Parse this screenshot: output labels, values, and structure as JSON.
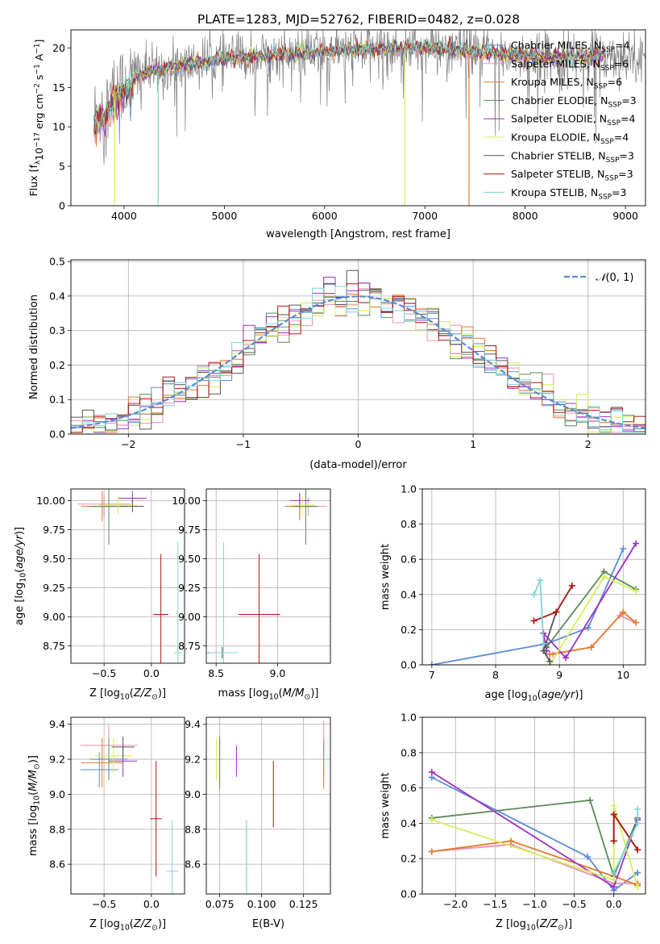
{
  "figure": {
    "title": "PLATE=1283, MJD=52762, FIBERID=0482, z=0.028"
  },
  "colors": {
    "chabrier_miles": "#5b8bd8",
    "salpeter_miles": "#ef8fb6",
    "kroupa_miles": "#e07b2a",
    "chabrier_elodie": "#5a8a5a",
    "salpeter_elodie": "#9b30c0",
    "kroupa_elodie": "#d6ef55",
    "chabrier_stelib": "#555555",
    "salpeter_stelib": "#b01414",
    "kroupa_stelib": "#7dd6d6",
    "normal": "#5b8bd8"
  },
  "legend_entries": [
    {
      "key": "chabrier_miles",
      "text": "Chabrier MILES, N",
      "sub": "SSP",
      "tail": "=4"
    },
    {
      "key": "salpeter_miles",
      "text": "Salpeter MILES, N",
      "sub": "SSP",
      "tail": "=6"
    },
    {
      "key": "kroupa_miles",
      "text": "Kroupa MILES, N",
      "sub": "SSP",
      "tail": "=6"
    },
    {
      "key": "chabrier_elodie",
      "text": "Chabrier ELODIE, N",
      "sub": "SSP",
      "tail": "=3"
    },
    {
      "key": "salpeter_elodie",
      "text": "Salpeter ELODIE, N",
      "sub": "SSP",
      "tail": "=4"
    },
    {
      "key": "kroupa_elodie",
      "text": "Kroupa ELODIE, N",
      "sub": "SSP",
      "tail": "=4"
    },
    {
      "key": "chabrier_stelib",
      "text": "Chabrier STELIB, N",
      "sub": "SSP",
      "tail": "=3"
    },
    {
      "key": "salpeter_stelib",
      "text": "Salpeter STELIB, N",
      "sub": "SSP",
      "tail": "=3"
    },
    {
      "key": "kroupa_stelib",
      "text": "Kroupa STELIB, N",
      "sub": "SSP",
      "tail": "=3"
    }
  ],
  "chart_data": [
    {
      "id": "spectrum",
      "type": "line",
      "title": "PLATE=1283, MJD=52762, FIBERID=0482, z=0.028",
      "xlabel": "wavelength [Angstrom, rest frame]",
      "ylabel": "Flux [f_λ 10^-17 erg cm^-2 s^-1 A^-1]",
      "xlim": [
        3470,
        9200
      ],
      "ylim": [
        0,
        22.3
      ],
      "xticks": [
        4000,
        5000,
        6000,
        7000,
        8000,
        9000
      ],
      "yticks": [
        0,
        5,
        10,
        15,
        20
      ],
      "grid": false,
      "legend": "upper-right",
      "continuum": [
        [
          3700,
          11.5
        ],
        [
          3800,
          12.5
        ],
        [
          3900,
          14.5
        ],
        [
          4000,
          15.8
        ],
        [
          4200,
          16.8
        ],
        [
          4400,
          17.3
        ],
        [
          4800,
          18.3
        ],
        [
          5200,
          18.9
        ],
        [
          5600,
          19.2
        ],
        [
          6000,
          19.5
        ],
        [
          6400,
          19.8
        ],
        [
          6800,
          20.1
        ],
        [
          7000,
          20.0
        ],
        [
          7400,
          19.6
        ],
        [
          7800,
          19.2
        ],
        [
          8200,
          18.9
        ],
        [
          8600,
          18.9
        ],
        [
          8800,
          19.2
        ]
      ],
      "data_noise_amplitude": 1.6,
      "data_x_range": [
        3700,
        9200
      ],
      "model_x_range": [
        3700,
        8800
      ],
      "drops": [
        {
          "x": 3905,
          "key": "kroupa_elodie"
        },
        {
          "x": 4340,
          "key": "kroupa_stelib"
        },
        {
          "x": 6800,
          "key": "kroupa_elodie"
        },
        {
          "x": 7440,
          "key": "kroupa_miles"
        }
      ]
    },
    {
      "id": "residual-hist",
      "type": "histogram",
      "xlabel": "(data-model)/error",
      "ylabel": "Normed distribution",
      "xlim": [
        -2.5,
        2.5
      ],
      "ylim": [
        0,
        0.505
      ],
      "xticks": [
        -2,
        -1,
        0,
        1,
        2
      ],
      "yticks": [
        0.0,
        0.1,
        0.2,
        0.3,
        0.4,
        0.5
      ],
      "bin_width": 0.1,
      "grid": true,
      "legend_label": "N(0,1)",
      "legend": "upper-right"
    },
    {
      "id": "age-vs-z",
      "type": "errorbar",
      "xlabel": "Z [log10(Z/Z⊙)]",
      "ylabel": "age  [log10(age/yr)]",
      "xlim": [
        -0.85,
        0.35
      ],
      "ylim": [
        8.6,
        10.1
      ],
      "xticks": [
        -0.5,
        0.0
      ],
      "xticklabels": [
        "−0.5",
        "0.0"
      ],
      "yticks": [
        8.75,
        9.0,
        9.25,
        9.5,
        9.75,
        10.0
      ],
      "grid": true,
      "points": [
        {
          "key": "chabrier_miles",
          "x": -0.5,
          "y": 9.95,
          "xerr": 0.2,
          "yerr": 0.08
        },
        {
          "key": "salpeter_miles",
          "x": -0.5,
          "y": 9.97,
          "xerr": 0.28,
          "yerr": 0.08
        },
        {
          "key": "kroupa_miles",
          "x": -0.52,
          "y": 9.95,
          "xerr": 0.22,
          "yerr": 0.13
        },
        {
          "key": "chabrier_elodie",
          "x": -0.45,
          "y": 9.95,
          "xerr": 0.2,
          "yerr": 0.33
        },
        {
          "key": "salpeter_elodie",
          "x": -0.2,
          "y": 10.02,
          "xerr": 0.15,
          "yerr": 0.06
        },
        {
          "key": "kroupa_elodie",
          "x": -0.35,
          "y": 9.96,
          "xerr": 0.2,
          "yerr": 0.08
        },
        {
          "key": "chabrier_stelib",
          "x": -0.2,
          "y": 9.95,
          "xerr": 0.12,
          "yerr": 0.05
        },
        {
          "key": "salpeter_stelib",
          "x": 0.1,
          "y": 9.02,
          "xerr": 0.08,
          "yerr": 0.52
        },
        {
          "key": "kroupa_stelib",
          "x": 0.28,
          "y": 8.69,
          "xerr": 0.04,
          "yerr": 0.95
        }
      ]
    },
    {
      "id": "age-vs-mass",
      "type": "errorbar",
      "xlabel": "mass [log10(M/M⊙)]",
      "ylabel": "",
      "xlim": [
        8.42,
        9.43
      ],
      "ylim": [
        8.6,
        10.1
      ],
      "xticks": [
        8.5,
        9.0
      ],
      "xticklabels": [
        "8.5",
        "9.0"
      ],
      "yticks": [
        8.75,
        9.0,
        9.25,
        9.5,
        9.75,
        10.0
      ],
      "grid": true,
      "points": [
        {
          "key": "chabrier_miles",
          "x": 9.18,
          "y": 9.95,
          "xerr": 0.12,
          "yerr": 0.1
        },
        {
          "key": "salpeter_miles",
          "x": 9.25,
          "y": 9.95,
          "xerr": 0.15,
          "yerr": 0.08
        },
        {
          "key": "kroupa_miles",
          "x": 9.18,
          "y": 9.95,
          "xerr": 0.12,
          "yerr": 0.12
        },
        {
          "key": "chabrier_elodie",
          "x": 9.23,
          "y": 9.95,
          "xerr": 0.1,
          "yerr": 0.33
        },
        {
          "key": "salpeter_elodie",
          "x": 9.18,
          "y": 10.0,
          "xerr": 0.08,
          "yerr": 0.06
        },
        {
          "key": "kroupa_elodie",
          "x": 9.2,
          "y": 9.96,
          "xerr": 0.1,
          "yerr": 0.08
        },
        {
          "key": "chabrier_stelib",
          "x": 8.55,
          "y": 8.69,
          "xerr": 0.12,
          "yerr": 0.05
        },
        {
          "key": "salpeter_stelib",
          "x": 8.85,
          "y": 9.02,
          "xerr": 0.17,
          "yerr": 0.52
        },
        {
          "key": "kroupa_stelib",
          "x": 8.56,
          "y": 8.69,
          "xerr": 0.12,
          "yerr": 0.95
        }
      ]
    },
    {
      "id": "weight-vs-age",
      "type": "line",
      "xlabel": "age  [log10(age/yr)]",
      "ylabel": "mass weight",
      "xlim": [
        6.85,
        10.35
      ],
      "ylim": [
        0,
        1.0
      ],
      "xticks": [
        7,
        8,
        9,
        10
      ],
      "yticks": [
        0.0,
        0.2,
        0.4,
        0.6,
        0.8,
        1.0
      ],
      "grid": true,
      "series": [
        {
          "key": "chabrier_miles",
          "points": [
            [
              7.0,
              0.0
            ],
            [
              8.8,
              0.12
            ],
            [
              9.45,
              0.21
            ],
            [
              10.0,
              0.66
            ]
          ]
        },
        {
          "key": "salpeter_miles",
          "points": [
            [
              8.9,
              0.06
            ],
            [
              9.5,
              0.1
            ],
            [
              9.95,
              0.28
            ],
            [
              10.2,
              0.24
            ]
          ]
        },
        {
          "key": "kroupa_miles",
          "points": [
            [
              8.85,
              0.06
            ],
            [
              9.5,
              0.1
            ],
            [
              10.0,
              0.3
            ],
            [
              10.2,
              0.24
            ]
          ]
        },
        {
          "key": "chabrier_elodie",
          "points": [
            [
              8.8,
              0.1
            ],
            [
              9.7,
              0.53
            ],
            [
              10.2,
              0.43
            ]
          ]
        },
        {
          "key": "salpeter_elodie",
          "points": [
            [
              8.8,
              0.08
            ],
            [
              8.75,
              0.18
            ],
            [
              9.1,
              0.04
            ],
            [
              10.2,
              0.69
            ]
          ]
        },
        {
          "key": "kroupa_elodie",
          "points": [
            [
              8.85,
              0.0
            ],
            [
              9.7,
              0.5
            ],
            [
              10.2,
              0.42
            ]
          ]
        },
        {
          "key": "chabrier_stelib",
          "points": [
            [
              8.85,
              0.02
            ],
            [
              8.75,
              0.08
            ],
            [
              8.95,
              0.3
            ]
          ]
        },
        {
          "key": "salpeter_stelib",
          "points": [
            [
              8.6,
              0.25
            ],
            [
              8.95,
              0.3
            ],
            [
              9.2,
              0.45
            ]
          ]
        },
        {
          "key": "kroupa_stelib",
          "points": [
            [
              8.6,
              0.4
            ],
            [
              8.7,
              0.48
            ],
            [
              8.75,
              0.12
            ]
          ]
        }
      ]
    },
    {
      "id": "mass-vs-z",
      "type": "errorbar",
      "xlabel": "Z [log10(Z/Z⊙)]",
      "ylabel": "mass [log10(M/M⊙)]",
      "xlim": [
        -0.85,
        0.35
      ],
      "ylim": [
        8.43,
        9.44
      ],
      "xticks": [
        -0.5,
        0.0
      ],
      "xticklabels": [
        "−0.5",
        "0.0"
      ],
      "yticks": [
        8.6,
        8.8,
        9.0,
        9.2,
        9.4
      ],
      "grid": true,
      "points": [
        {
          "key": "chabrier_miles",
          "x": -0.55,
          "y": 9.14,
          "xerr": 0.2,
          "yerr": 0.1
        },
        {
          "key": "salpeter_miles",
          "x": -0.45,
          "y": 9.28,
          "xerr": 0.3,
          "yerr": 0.12
        },
        {
          "key": "kroupa_miles",
          "x": -0.52,
          "y": 9.18,
          "xerr": 0.22,
          "yerr": 0.14
        },
        {
          "key": "chabrier_elodie",
          "x": -0.45,
          "y": 9.2,
          "xerr": 0.2,
          "yerr": 0.12
        },
        {
          "key": "salpeter_elodie",
          "x": -0.3,
          "y": 9.19,
          "xerr": 0.15,
          "yerr": 0.09
        },
        {
          "key": "kroupa_elodie",
          "x": -0.4,
          "y": 9.22,
          "xerr": 0.2,
          "yerr": 0.1
        },
        {
          "key": "chabrier_stelib",
          "x": -0.3,
          "y": 9.27,
          "xerr": 0.12,
          "yerr": 0.06
        },
        {
          "key": "salpeter_stelib",
          "x": 0.05,
          "y": 8.86,
          "xerr": 0.06,
          "yerr": 0.33
        },
        {
          "key": "kroupa_stelib",
          "x": 0.22,
          "y": 8.56,
          "xerr": 0.06,
          "yerr": 0.29
        }
      ]
    },
    {
      "id": "mass-vs-ebv",
      "type": "errorbar",
      "xlabel": "E(B-V)",
      "ylabel": "",
      "xlim": [
        0.067,
        0.141
      ],
      "ylim": [
        8.43,
        9.44
      ],
      "xticks": [
        0.075,
        0.1,
        0.125
      ],
      "xticklabels": [
        "0.075",
        "0.100",
        "0.125"
      ],
      "yticks": [
        8.6,
        8.8,
        9.0,
        9.2,
        9.4
      ],
      "grid": true,
      "points": [
        {
          "key": "chabrier_miles",
          "x": 0.137,
          "y": 9.2,
          "xerr": 0,
          "yerr": 0.1
        },
        {
          "key": "salpeter_miles",
          "x": 0.137,
          "y": 9.3,
          "xerr": 0,
          "yerr": 0.12
        },
        {
          "key": "kroupa_miles",
          "x": 0.137,
          "y": 9.17,
          "xerr": 0,
          "yerr": 0.14
        },
        {
          "key": "chabrier_elodie",
          "x": 0.075,
          "y": 9.18,
          "xerr": 0,
          "yerr": 0.15
        },
        {
          "key": "salpeter_elodie",
          "x": 0.085,
          "y": 9.19,
          "xerr": 0,
          "yerr": 0.09
        },
        {
          "key": "kroupa_elodie",
          "x": 0.073,
          "y": 9.2,
          "xerr": 0,
          "yerr": 0.12
        },
        {
          "key": "chabrier_stelib",
          "x": 0.091,
          "y": 8.65,
          "xerr": 0,
          "yerr": 0.2
        },
        {
          "key": "salpeter_stelib",
          "x": 0.107,
          "y": 9.0,
          "xerr": 0,
          "yerr": 0.19
        },
        {
          "key": "kroupa_stelib",
          "x": 0.091,
          "y": 8.56,
          "xerr": 0,
          "yerr": 0.29
        }
      ]
    },
    {
      "id": "weight-vs-z",
      "type": "line",
      "xlabel": "Z [log10(Z/Z⊙)]",
      "ylabel": "mass weight",
      "xlim": [
        -2.42,
        0.4
      ],
      "ylim": [
        0,
        1.0
      ],
      "xticks": [
        -2.0,
        -1.5,
        -1.0,
        -0.5,
        0.0
      ],
      "xticklabels": [
        "−2.0",
        "−1.5",
        "−1.0",
        "−0.5",
        "0.0"
      ],
      "yticks": [
        0.0,
        0.2,
        0.4,
        0.6,
        0.8,
        1.0
      ],
      "grid": true,
      "series": [
        {
          "key": "chabrier_miles",
          "points": [
            [
              -2.3,
              0.66
            ],
            [
              -0.33,
              0.21
            ],
            [
              0.0,
              0.02
            ],
            [
              0.3,
              0.12
            ]
          ]
        },
        {
          "key": "salpeter_miles",
          "points": [
            [
              -2.3,
              0.24
            ],
            [
              -1.3,
              0.28
            ],
            [
              0.0,
              0.06
            ],
            [
              0.3,
              0.06
            ]
          ]
        },
        {
          "key": "kroupa_miles",
          "points": [
            [
              -2.3,
              0.24
            ],
            [
              -1.3,
              0.3
            ],
            [
              0.0,
              0.1
            ],
            [
              0.3,
              0.05
            ]
          ]
        },
        {
          "key": "chabrier_elodie",
          "points": [
            [
              -2.3,
              0.43
            ],
            [
              -0.3,
              0.53
            ],
            [
              0.0,
              0.1
            ],
            [
              0.3,
              0.43
            ]
          ]
        },
        {
          "key": "salpeter_elodie",
          "points": [
            [
              -2.3,
              0.69
            ],
            [
              0.0,
              0.04
            ],
            [
              0.3,
              0.42
            ]
          ]
        },
        {
          "key": "kroupa_elodie",
          "points": [
            [
              -2.3,
              0.42
            ],
            [
              0.0,
              0.08
            ],
            [
              0.0,
              0.5
            ],
            [
              0.3,
              0.04
            ]
          ]
        },
        {
          "key": "chabrier_stelib",
          "points": [
            [
              0.0,
              0.3
            ],
            [
              0.0,
              0.45
            ],
            [
              0.3,
              0.25
            ]
          ]
        },
        {
          "key": "salpeter_stelib",
          "points": [
            [
              0.0,
              0.3
            ],
            [
              0.0,
              0.45
            ],
            [
              0.3,
              0.25
            ]
          ]
        },
        {
          "key": "kroupa_stelib",
          "points": [
            [
              0.0,
              0.12
            ],
            [
              0.3,
              0.4
            ],
            [
              0.3,
              0.48
            ]
          ]
        }
      ]
    }
  ]
}
